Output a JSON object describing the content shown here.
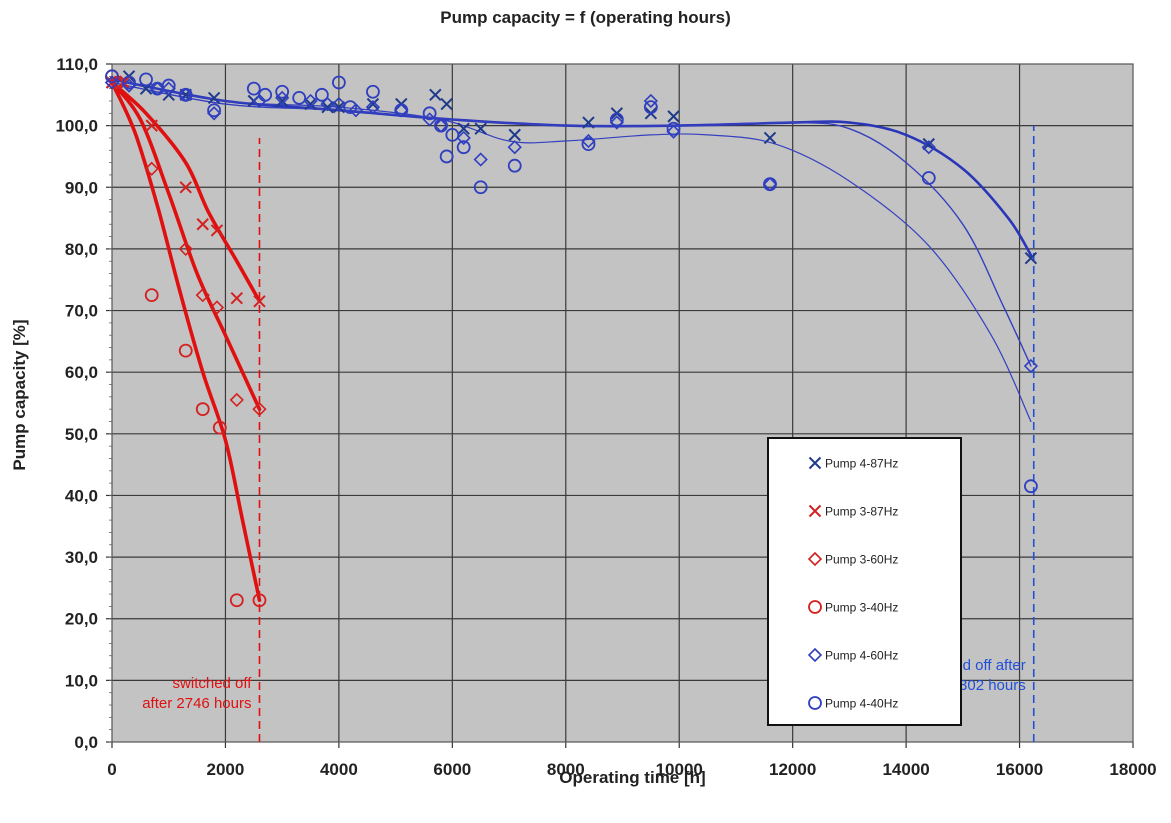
{
  "chart_data": {
    "type": "scatter",
    "title": "Pump capacity = f (operating hours)",
    "xlabel": "Operating time [h]",
    "ylabel": "Pump capacity [%]",
    "xlim": [
      0,
      18000
    ],
    "ylim": [
      0,
      110
    ],
    "xticks": [
      "0",
      "2000",
      "4000",
      "6000",
      "8000",
      "10000",
      "12000",
      "14000",
      "16000",
      "18000"
    ],
    "yticks": [
      "0,0",
      "10,0",
      "20,0",
      "30,0",
      "40,0",
      "50,0",
      "60,0",
      "70,0",
      "80,0",
      "90,0",
      "100,0",
      "110,0"
    ],
    "grid": true,
    "legend_position": "bottom-right",
    "series": [
      {
        "name": "Pump  4-87Hz",
        "marker": "x",
        "color": "#1f3a8a",
        "points": [
          [
            0,
            107
          ],
          [
            300,
            108
          ],
          [
            600,
            106
          ],
          [
            1000,
            105
          ],
          [
            1300,
            105
          ],
          [
            1800,
            104.5
          ],
          [
            2500,
            104
          ],
          [
            3000,
            104
          ],
          [
            3500,
            103.5
          ],
          [
            3800,
            103
          ],
          [
            4000,
            103
          ],
          [
            4600,
            103.5
          ],
          [
            5100,
            103.5
          ],
          [
            5700,
            105
          ],
          [
            5900,
            103.5
          ],
          [
            6200,
            99.5
          ],
          [
            6500,
            99.5
          ],
          [
            7100,
            98.5
          ],
          [
            8400,
            100.5
          ],
          [
            8900,
            102
          ],
          [
            9500,
            102
          ],
          [
            9900,
            101.5
          ],
          [
            11600,
            98
          ],
          [
            14400,
            97
          ],
          [
            16200,
            78.5
          ]
        ]
      },
      {
        "name": "Pump  3-87Hz",
        "marker": "x",
        "color": "#d42020",
        "points": [
          [
            0,
            107
          ],
          [
            200,
            107
          ],
          [
            700,
            100
          ],
          [
            1300,
            90
          ],
          [
            1600,
            84
          ],
          [
            1850,
            83
          ],
          [
            2200,
            72
          ],
          [
            2600,
            71.5
          ]
        ]
      },
      {
        "name": "Pump  3-60Hz",
        "marker": "diamond",
        "color": "#d42020",
        "points": [
          [
            0,
            107
          ],
          [
            150,
            107
          ],
          [
            700,
            93
          ],
          [
            1300,
            80
          ],
          [
            1600,
            72.5
          ],
          [
            1850,
            70.5
          ],
          [
            2200,
            55.5
          ],
          [
            2600,
            54
          ]
        ]
      },
      {
        "name": "Pump  3-40Hz",
        "marker": "circle",
        "color": "#d42020",
        "points": [
          [
            0,
            108
          ],
          [
            100,
            107
          ],
          [
            700,
            72.5
          ],
          [
            1300,
            63.5
          ],
          [
            1600,
            54
          ],
          [
            1900,
            51
          ],
          [
            2200,
            23
          ],
          [
            2600,
            23
          ]
        ]
      },
      {
        "name": "Pump  4-60Hz",
        "marker": "diamond",
        "color": "#2f3fbf",
        "points": [
          [
            0,
            107
          ],
          [
            300,
            106.5
          ],
          [
            800,
            106
          ],
          [
            1000,
            106
          ],
          [
            1300,
            105
          ],
          [
            1800,
            102
          ],
          [
            2600,
            104
          ],
          [
            3000,
            104.5
          ],
          [
            3500,
            104
          ],
          [
            3800,
            103.5
          ],
          [
            4000,
            103.5
          ],
          [
            4300,
            102.5
          ],
          [
            4600,
            103
          ],
          [
            5100,
            102.5
          ],
          [
            5600,
            101
          ],
          [
            5800,
            100
          ],
          [
            6200,
            98
          ],
          [
            6500,
            94.5
          ],
          [
            7100,
            96.5
          ],
          [
            8400,
            97.5
          ],
          [
            8900,
            100.5
          ],
          [
            9500,
            104
          ],
          [
            9900,
            99
          ],
          [
            11600,
            90.5
          ],
          [
            14400,
            96.5
          ],
          [
            16200,
            61
          ]
        ]
      },
      {
        "name": "Pump  4-40Hz",
        "marker": "circle",
        "color": "#2f3fbf",
        "points": [
          [
            0,
            108
          ],
          [
            300,
            107
          ],
          [
            600,
            107.5
          ],
          [
            800,
            106
          ],
          [
            1000,
            106.5
          ],
          [
            1300,
            105
          ],
          [
            1800,
            102.5
          ],
          [
            2500,
            106
          ],
          [
            2700,
            105
          ],
          [
            3000,
            105.5
          ],
          [
            3300,
            104.5
          ],
          [
            3700,
            105
          ],
          [
            4000,
            107
          ],
          [
            4200,
            103
          ],
          [
            4600,
            105.5
          ],
          [
            5100,
            102.5
          ],
          [
            5600,
            102
          ],
          [
            5800,
            100
          ],
          [
            5900,
            95
          ],
          [
            6000,
            98.5
          ],
          [
            6200,
            96.5
          ],
          [
            6500,
            90
          ],
          [
            7100,
            93.5
          ],
          [
            8400,
            97
          ],
          [
            8900,
            101
          ],
          [
            9500,
            103
          ],
          [
            9900,
            99.5
          ],
          [
            11600,
            90.5
          ],
          [
            14400,
            91.5
          ],
          [
            16200,
            41.5
          ]
        ]
      }
    ],
    "trend_lines": [
      {
        "color": "#2a36b8",
        "width": 2.6,
        "points": [
          [
            0,
            107.5
          ],
          [
            2000,
            104
          ],
          [
            4000,
            102.5
          ],
          [
            6000,
            101
          ],
          [
            8000,
            100
          ],
          [
            10000,
            100
          ],
          [
            12000,
            100.5
          ],
          [
            13000,
            100.5
          ],
          [
            14000,
            98.5
          ],
          [
            15000,
            93
          ],
          [
            15800,
            85
          ],
          [
            16200,
            79
          ]
        ]
      },
      {
        "color": "#3540c0",
        "width": 1.4,
        "points": [
          [
            0,
            107
          ],
          [
            2000,
            103.5
          ],
          [
            4000,
            102.5
          ],
          [
            6000,
            101
          ],
          [
            8000,
            100
          ],
          [
            10000,
            100
          ],
          [
            12000,
            100.5
          ],
          [
            13000,
            99.5
          ],
          [
            14000,
            94
          ],
          [
            15000,
            84
          ],
          [
            15700,
            71
          ],
          [
            16200,
            61
          ]
        ]
      },
      {
        "color": "#3540c0",
        "width": 1.2,
        "points": [
          [
            0,
            107.5
          ],
          [
            2000,
            104
          ],
          [
            4000,
            103
          ],
          [
            5800,
            101
          ],
          [
            7000,
            97.5
          ],
          [
            8000,
            97.5
          ],
          [
            9500,
            98.5
          ],
          [
            10500,
            98.5
          ],
          [
            11700,
            97
          ],
          [
            13000,
            91
          ],
          [
            14400,
            80.5
          ],
          [
            15500,
            66
          ],
          [
            16200,
            52
          ]
        ]
      },
      {
        "color": "#e01010",
        "width": 3.6,
        "points": [
          [
            0,
            107
          ],
          [
            600,
            102
          ],
          [
            1300,
            94
          ],
          [
            1700,
            86
          ],
          [
            2200,
            78
          ],
          [
            2600,
            71.5
          ]
        ]
      },
      {
        "color": "#e01010",
        "width": 3.6,
        "points": [
          [
            0,
            107
          ],
          [
            500,
            101
          ],
          [
            1000,
            89
          ],
          [
            1500,
            76
          ],
          [
            2000,
            66
          ],
          [
            2300,
            60
          ],
          [
            2600,
            54
          ]
        ]
      },
      {
        "color": "#e01010",
        "width": 3.6,
        "points": [
          [
            0,
            107
          ],
          [
            400,
            99
          ],
          [
            800,
            87
          ],
          [
            1200,
            73
          ],
          [
            1600,
            60
          ],
          [
            2000,
            49
          ],
          [
            2300,
            36
          ],
          [
            2600,
            23
          ]
        ]
      }
    ],
    "vertical_lines": [
      {
        "x": 2600,
        "color": "#e01010",
        "from": 0,
        "to": 98
      },
      {
        "x": 16250,
        "color": "#2050d8",
        "from": 0,
        "to": 100
      }
    ],
    "annotations": [
      {
        "text_lines": [
          "switched off",
          "after 2746 hours"
        ],
        "color": "#e01010",
        "x": 2600,
        "y": 10
      },
      {
        "text_lines": [
          "switched off after",
          "16302 hours"
        ],
        "color": "#2050d8",
        "x": 16250,
        "y": 10
      }
    ],
    "colors": {
      "plot_bg": "#c3c3c3",
      "grid": "#3a3a3a",
      "axis_text": "#222222"
    }
  }
}
